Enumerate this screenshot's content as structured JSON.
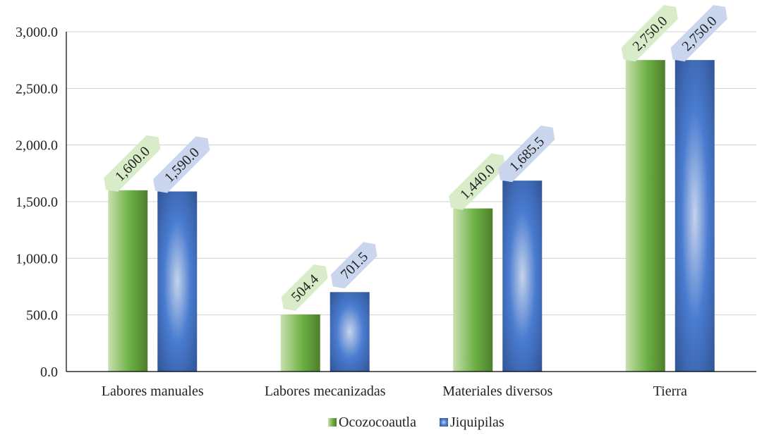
{
  "chart_data": {
    "type": "bar",
    "title": "",
    "xlabel": "",
    "ylabel": "",
    "categories": [
      "Labores manuales",
      "Labores mecanizadas",
      "Materiales diversos",
      "Tierra"
    ],
    "series": [
      {
        "name": "Ocozocoautla",
        "values": [
          1600.0,
          504.4,
          1440.0,
          2750.0
        ],
        "labels": [
          "1,600.0",
          "504.4",
          "1,440.0",
          "2,750.0"
        ],
        "color": "#6aaa3f",
        "label_bg": "#d9ecc9"
      },
      {
        "name": "Jiquipilas",
        "values": [
          1590.0,
          701.5,
          1685.5,
          2750.0
        ],
        "labels": [
          "1,590.0",
          "701.5",
          "1,685.5",
          "2,750.0"
        ],
        "color": "#3b6cc0",
        "label_bg": "#c9d6ee"
      }
    ],
    "ylim": [
      0,
      3000
    ],
    "yticks": [
      0,
      500,
      1000,
      1500,
      2000,
      2500,
      3000
    ],
    "ytick_labels": [
      "0.0",
      "500.0",
      "1,000.0",
      "1,500.0",
      "2,000.0",
      "2,500.0",
      "3,000.0"
    ],
    "grid": true,
    "legend_position": "bottom"
  }
}
